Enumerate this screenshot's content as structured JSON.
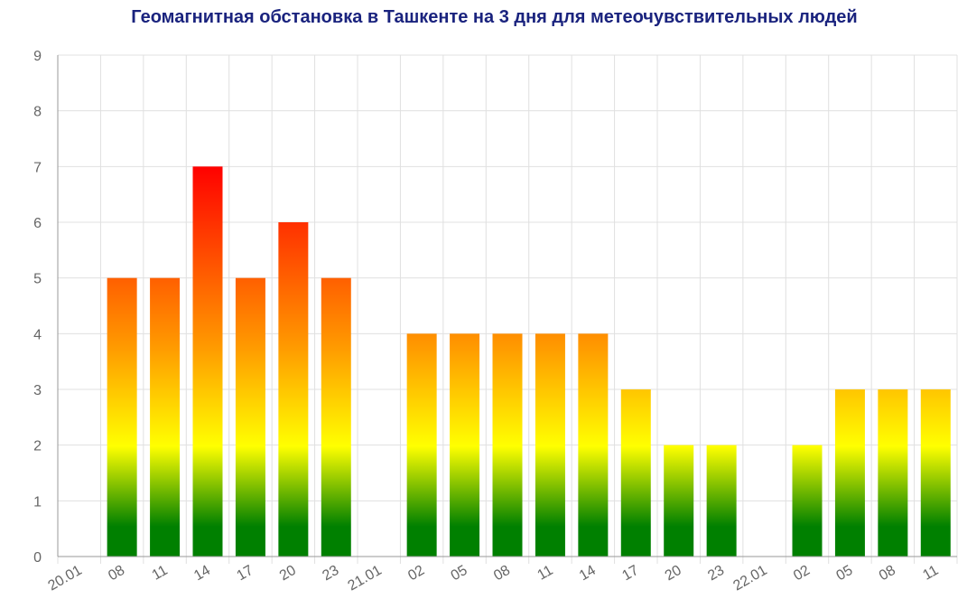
{
  "chart_data": {
    "type": "bar",
    "title": "Геомагнитная обстановка в Ташкенте на 3 дня для метеочувствительных людей",
    "categories": [
      "20.01",
      "08",
      "11",
      "14",
      "17",
      "20",
      "23",
      "21.01",
      "02",
      "05",
      "08",
      "11",
      "14",
      "17",
      "20",
      "23",
      "22.01",
      "02",
      "05",
      "08",
      "11"
    ],
    "values": [
      0,
      5,
      5,
      7,
      5,
      6,
      5,
      0,
      4,
      4,
      4,
      4,
      4,
      3,
      2,
      2,
      0,
      2,
      3,
      3,
      3
    ],
    "ylim": [
      0,
      9
    ],
    "yticks": [
      "0",
      "1",
      "2",
      "3",
      "4",
      "5",
      "6",
      "7",
      "8",
      "9"
    ],
    "grid": true,
    "colors": {
      "low": "#008000",
      "mid": "#ffff00",
      "upper": "#ff9900",
      "high": "#ff0000",
      "title": "#1a237e",
      "grid": "#e0e0e0",
      "axis": "#999999",
      "tick_text": "#666666"
    }
  }
}
